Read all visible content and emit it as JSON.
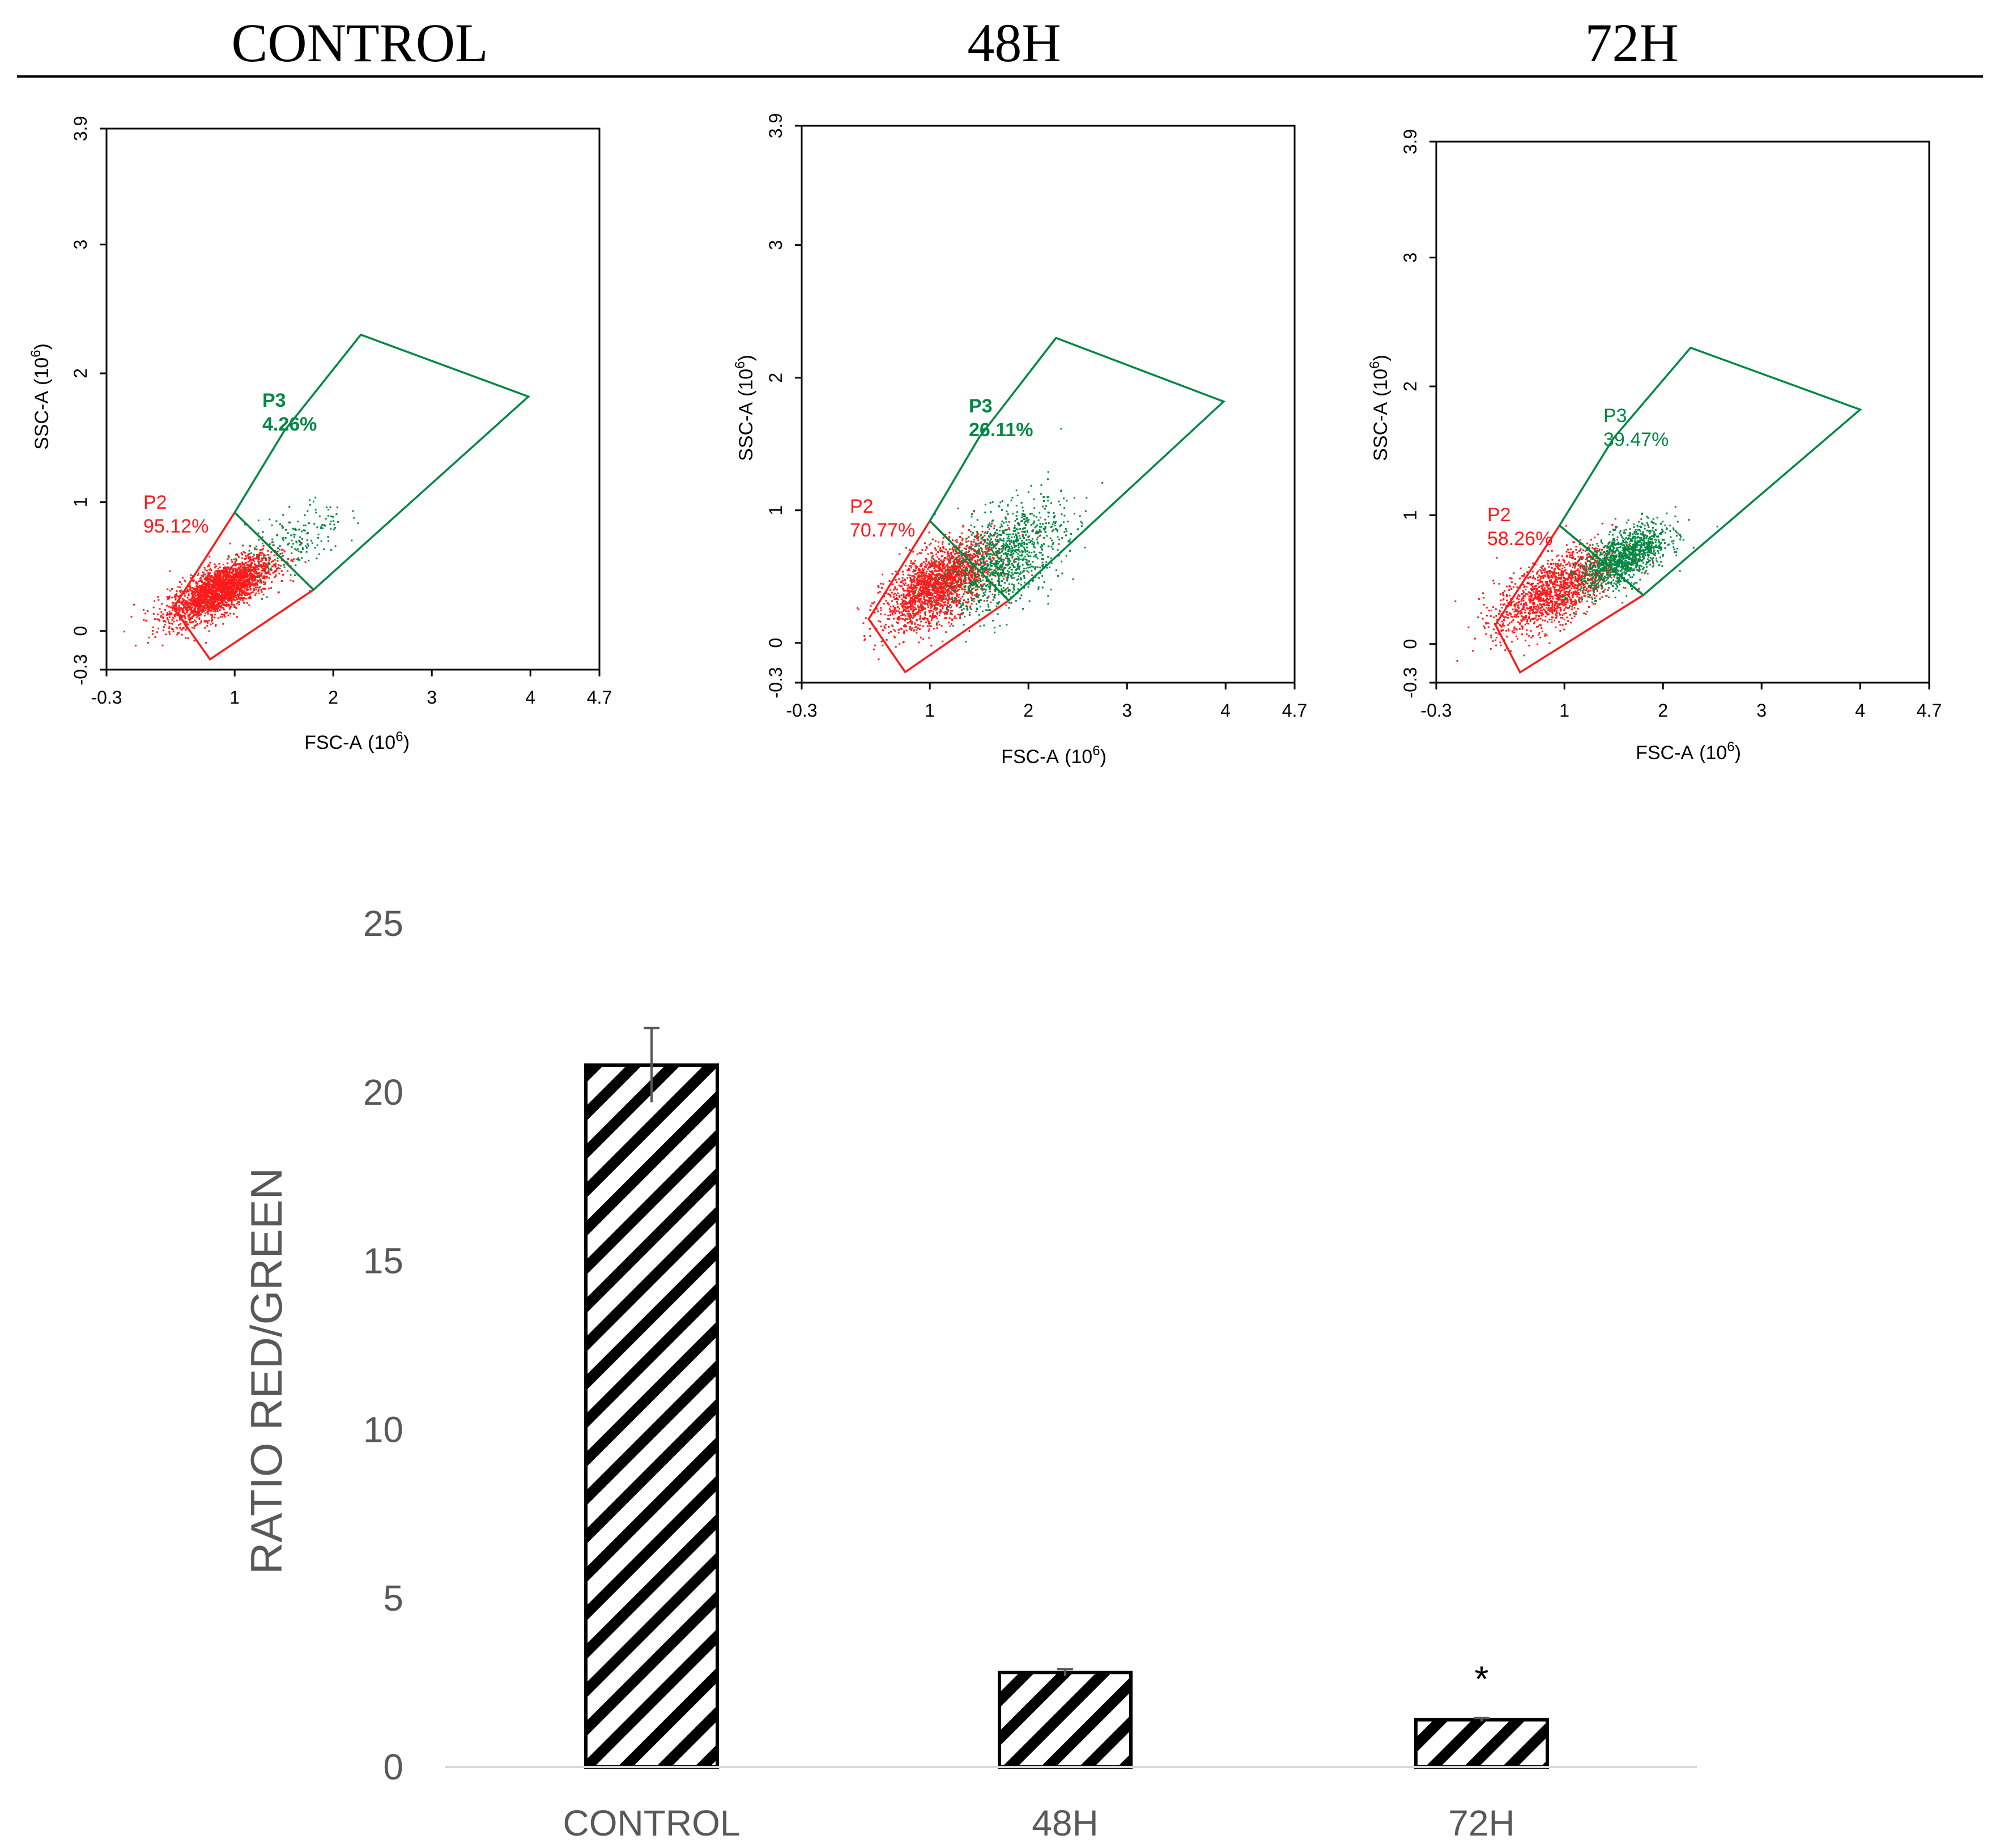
{
  "chart_data": [
    {
      "type": "scatter",
      "panel_title": "CONTROL",
      "xlabel": "FSC-A",
      "ylabel": "SSC-A",
      "unit": "(10",
      "exponent": "6",
      "unit_close": ")",
      "xlim": [
        -0.3,
        4.7
      ],
      "ylim": [
        -0.3,
        3.9
      ],
      "x_ticks": [
        "-0.3",
        "1",
        "2",
        "3",
        "4",
        "4.7"
      ],
      "x_tick_values": [
        -0.3,
        1,
        2,
        3,
        4,
        4.7
      ],
      "y_ticks": [
        "-0.3",
        "0",
        "1",
        "2",
        "3",
        "3.9"
      ],
      "y_tick_values": [
        -0.3,
        0,
        1,
        2,
        3,
        3.9
      ],
      "gates": [
        {
          "name": "P2",
          "percent": "95.12%",
          "color": "#ff1a1a",
          "polygon": [
            [
              0.38,
              0.18
            ],
            [
              1.0,
              0.92
            ],
            [
              1.8,
              0.32
            ],
            [
              0.75,
              -0.22
            ]
          ],
          "cluster": {
            "cx": 0.85,
            "cy": 0.33,
            "sx": 0.26,
            "sy": 0.09,
            "n": 2600
          }
        },
        {
          "name": "P3",
          "percent": "4.26%",
          "color": "#008844",
          "polygon": [
            [
              1.0,
              0.92
            ],
            [
              1.5,
              1.55
            ],
            [
              2.28,
              2.3
            ],
            [
              3.98,
              1.82
            ],
            [
              1.8,
              0.32
            ]
          ],
          "cluster": {
            "cx": 1.6,
            "cy": 0.7,
            "sx": 0.25,
            "sy": 0.14,
            "n": 180
          }
        }
      ]
    },
    {
      "type": "scatter",
      "panel_title": "48H",
      "xlabel": "FSC-A",
      "ylabel": "SSC-A",
      "unit": "(10",
      "exponent": "6",
      "unit_close": ")",
      "xlim": [
        -0.3,
        4.7
      ],
      "ylim": [
        -0.3,
        3.9
      ],
      "x_ticks": [
        "-0.3",
        "1",
        "2",
        "3",
        "4",
        "4.7"
      ],
      "x_tick_values": [
        -0.3,
        1,
        2,
        3,
        4,
        4.7
      ],
      "y_ticks": [
        "-0.3",
        "0",
        "1",
        "2",
        "3",
        "3.9"
      ],
      "y_tick_values": [
        -0.3,
        0,
        1,
        2,
        3,
        3.9
      ],
      "gates": [
        {
          "name": "P2",
          "percent": "70.77%",
          "color": "#ff1a1a",
          "polygon": [
            [
              0.38,
              0.18
            ],
            [
              1.0,
              0.92
            ],
            [
              1.8,
              0.32
            ],
            [
              0.75,
              -0.22
            ]
          ],
          "cluster": {
            "cx": 1.1,
            "cy": 0.45,
            "sx": 0.28,
            "sy": 0.13,
            "n": 2200
          }
        },
        {
          "name": "P3",
          "percent": "26.11%",
          "color": "#008844",
          "polygon": [
            [
              1.0,
              0.92
            ],
            [
              1.5,
              1.55
            ],
            [
              2.28,
              2.3
            ],
            [
              3.98,
              1.82
            ],
            [
              1.8,
              0.32
            ]
          ],
          "cluster": {
            "cx": 1.75,
            "cy": 0.65,
            "sx": 0.3,
            "sy": 0.18,
            "n": 1100
          }
        }
      ]
    },
    {
      "type": "scatter",
      "panel_title": "72H",
      "xlabel": "FSC-A",
      "ylabel": "SSC-A",
      "unit": "(10",
      "exponent": "6",
      "unit_close": ")",
      "xlim": [
        -0.3,
        4.7
      ],
      "ylim": [
        -0.3,
        3.9
      ],
      "x_ticks": [
        "-0.3",
        "1",
        "2",
        "3",
        "4",
        "4.7"
      ],
      "x_tick_values": [
        -0.3,
        1,
        2,
        3,
        4,
        4.7
      ],
      "y_ticks": [
        "-0.3",
        "0",
        "1",
        "2",
        "3",
        "3.9"
      ],
      "y_tick_values": [
        -0.3,
        0,
        1,
        2,
        3,
        3.9
      ],
      "gates": [
        {
          "name": "P2",
          "percent": "58.26%",
          "color": "#ff1a1a",
          "polygon": [
            [
              0.3,
              0.15
            ],
            [
              0.95,
              0.92
            ],
            [
              1.8,
              0.38
            ],
            [
              0.55,
              -0.22
            ]
          ],
          "cluster": {
            "cx": 0.9,
            "cy": 0.42,
            "sx": 0.3,
            "sy": 0.13,
            "n": 1500
          }
        },
        {
          "name": "P3",
          "percent": "39.47%",
          "color": "#008844",
          "polygon": [
            [
              0.95,
              0.92
            ],
            [
              1.5,
              1.6
            ],
            [
              2.28,
              2.3
            ],
            [
              4.0,
              1.82
            ],
            [
              1.8,
              0.38
            ]
          ],
          "cluster": {
            "cx": 1.6,
            "cy": 0.68,
            "sx": 0.22,
            "sy": 0.1,
            "n": 1200
          }
        }
      ]
    },
    {
      "type": "bar",
      "categories": [
        "CONTROL",
        "48H",
        "72H"
      ],
      "values": [
        20.8,
        2.8,
        1.4
      ],
      "errors": [
        1.1,
        0.1,
        0.05
      ],
      "annotations": [
        "",
        "",
        "*"
      ],
      "ylabel": "RATIO RED/GREEN",
      "y_ticks": [
        "0",
        "5",
        "10",
        "15",
        "20",
        "25"
      ],
      "y_tick_values": [
        0,
        5,
        10,
        15,
        20,
        25
      ],
      "ylim": [
        0,
        25
      ],
      "fill_pattern": "diagonal-hatch",
      "colors": {
        "bar_stroke": "#000000",
        "axis": "#d9d9d9",
        "text": "#595959",
        "error": "#595959"
      }
    }
  ]
}
